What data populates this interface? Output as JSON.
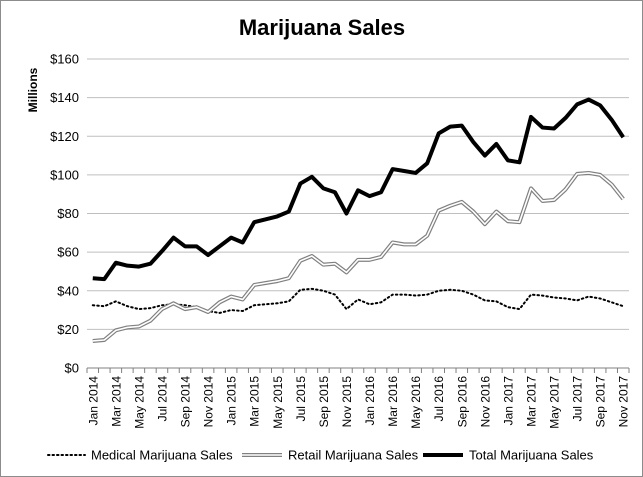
{
  "chart_data": {
    "type": "line",
    "title": "Marijuana Sales",
    "ylabel": "Millions",
    "xlabel": "",
    "ylim": [
      0,
      160
    ],
    "yticks": [
      "$0",
      "$20",
      "$40",
      "$60",
      "$80",
      "$100",
      "$120",
      "$140",
      "$160"
    ],
    "ytick_values": [
      0,
      20,
      40,
      60,
      80,
      100,
      120,
      140,
      160
    ],
    "grid": "horizontal",
    "legend": "bottom",
    "x": [
      "Jan 2014",
      "Feb 2014",
      "Mar 2014",
      "Apr 2014",
      "May 2014",
      "Jun 2014",
      "Jul 2014",
      "Aug 2014",
      "Sep 2014",
      "Oct 2014",
      "Nov 2014",
      "Dec 2014",
      "Jan 2015",
      "Feb 2015",
      "Mar 2015",
      "Apr 2015",
      "May 2015",
      "Jun 2015",
      "Jul 2015",
      "Aug 2015",
      "Sep 2015",
      "Oct 2015",
      "Nov 2015",
      "Dec 2015",
      "Jan 2016",
      "Feb 2016",
      "Mar 2016",
      "Apr 2016",
      "May 2016",
      "Jun 2016",
      "Jul 2016",
      "Aug 2016",
      "Sep 2016",
      "Oct 2016",
      "Nov 2016",
      "Dec 2016",
      "Jan 2017",
      "Feb 2017",
      "Mar 2017",
      "Apr 2017",
      "May 2017",
      "Jun 2017",
      "Jul 2017",
      "Aug 2017",
      "Sep 2017",
      "Oct 2017",
      "Nov 2017"
    ],
    "x_tick_labels": [
      "Jan 2014",
      "",
      "Mar 2014",
      "",
      "May 2014",
      "",
      "Jul 2014",
      "",
      "Sep 2014",
      "",
      "Nov 2014",
      "",
      "Jan 2015",
      "",
      "Mar 2015",
      "",
      "May 2015",
      "",
      "Jul 2015",
      "",
      "Sep 2015",
      "",
      "Nov 2015",
      "",
      "Jan 2016",
      "",
      "Mar 2016",
      "",
      "May 2016",
      "",
      "Jul 2016",
      "",
      "Sep 2016",
      "",
      "Nov 2016",
      "",
      "Jan 2017",
      "",
      "Mar 2017",
      "",
      "May 2017",
      "",
      "Jul 2017",
      "",
      "Sep 2017",
      "",
      "Nov 2017"
    ],
    "series": [
      {
        "name": "Medical Marijuana Sales",
        "style": "dotted",
        "color": "#000000",
        "values": [
          32.5,
          32,
          34.5,
          32,
          30.5,
          31,
          32.5,
          33,
          32.5,
          31.5,
          29.5,
          28.5,
          30,
          29.5,
          32.5,
          33,
          33.5,
          34.5,
          40.5,
          41,
          40,
          38,
          30.5,
          35.5,
          33,
          34,
          38,
          38,
          37.5,
          38,
          40,
          40.5,
          40,
          38,
          35,
          34.5,
          31.5,
          30.5,
          38,
          37.5,
          36.5,
          36,
          35,
          37,
          36,
          34,
          32
        ]
      },
      {
        "name": "Retail Marijuana Sales",
        "style": "double",
        "color": "#808080",
        "values": [
          14,
          14.5,
          19.5,
          21,
          21.5,
          24.5,
          30.5,
          33.5,
          30.5,
          31.5,
          29,
          34,
          37,
          35.5,
          43,
          44,
          45,
          46.5,
          55.5,
          58,
          53.5,
          54,
          49.5,
          56,
          56,
          57.5,
          65,
          64,
          64,
          68.5,
          81.5,
          84,
          86,
          81,
          74.5,
          81,
          76,
          75.5,
          93,
          86.5,
          87,
          92.5,
          100.5,
          101,
          100,
          95,
          87.5
        ]
      },
      {
        "name": "Total Marijuana Sales",
        "style": "thick",
        "color": "#000000",
        "values": [
          46.5,
          46,
          54.5,
          53,
          52.5,
          54,
          60.5,
          67.5,
          63,
          63,
          58.5,
          63,
          67.5,
          65,
          75.5,
          77,
          78.5,
          81,
          95.5,
          99,
          93,
          91,
          80,
          92,
          89,
          91,
          103,
          102,
          101,
          106,
          121.5,
          125,
          125.5,
          117,
          110,
          116,
          107.5,
          106.5,
          130,
          124.5,
          124,
          129.5,
          136.5,
          139,
          136,
          128.5,
          119.5
        ]
      }
    ]
  }
}
